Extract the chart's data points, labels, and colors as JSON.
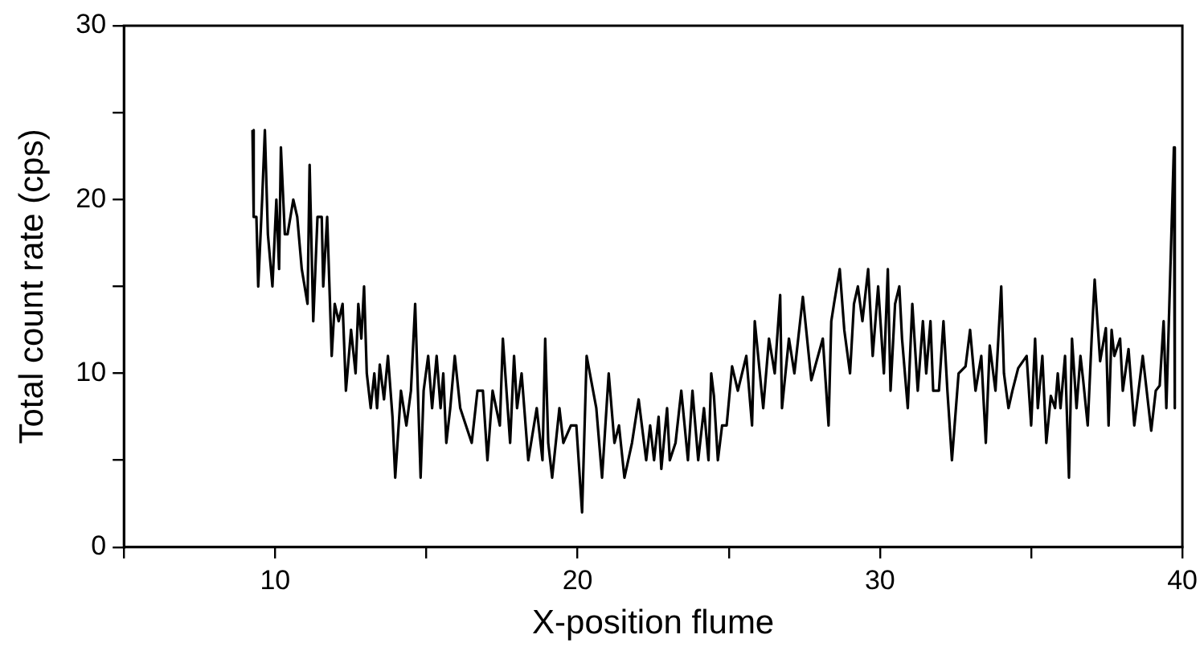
{
  "chart_data": {
    "type": "line",
    "xlabel": "X-position flume",
    "ylabel": "Total count rate (cps)",
    "xlim": [
      5,
      40
    ],
    "xticks": [
      {
        "value": 5,
        "label": null
      },
      10,
      {
        "value": 15,
        "label": null
      },
      20,
      {
        "value": 25,
        "label": null
      },
      30,
      {
        "value": 35,
        "label": null
      },
      40
    ],
    "ylim": [
      0,
      30
    ],
    "yticks": [
      0,
      {
        "value": 5,
        "label": null
      },
      10,
      {
        "value": 15,
        "label": null
      },
      20,
      {
        "value": 25,
        "label": null
      },
      30
    ],
    "grid": false,
    "legend": false,
    "marker": "none",
    "line_style": "solid",
    "series": [
      {
        "color": "#000000",
        "x": [
          9.25,
          9.29,
          9.38,
          9.44,
          9.57,
          9.66,
          9.76,
          9.91,
          10.04,
          10.13,
          10.19,
          10.32,
          10.41,
          10.6,
          10.73,
          10.88,
          11.07,
          11.14,
          11.26,
          11.4,
          11.54,
          11.59,
          11.72,
          11.87,
          11.97,
          12.1,
          12.23,
          12.34,
          12.51,
          12.66,
          12.75,
          12.85,
          12.94,
          13.03,
          13.16,
          13.28,
          13.37,
          13.46,
          13.6,
          13.73,
          13.88,
          13.97,
          14.16,
          14.34,
          14.49,
          14.63,
          14.72,
          14.81,
          14.91,
          15.06,
          15.19,
          15.34,
          15.47,
          15.56,
          15.66,
          15.79,
          15.94,
          16.12,
          16.31,
          16.5,
          16.69,
          16.87,
          17.02,
          17.19,
          17.43,
          17.53,
          17.77,
          17.9,
          18.0,
          18.15,
          18.37,
          18.65,
          18.84,
          18.93,
          19.03,
          19.16,
          19.4,
          19.53,
          19.78,
          19.96,
          20.15,
          20.3,
          20.62,
          20.81,
          21.03,
          21.22,
          21.37,
          21.55,
          21.8,
          22.02,
          22.27,
          22.4,
          22.53,
          22.68,
          22.77,
          22.96,
          23.05,
          23.24,
          23.43,
          23.65,
          23.8,
          23.99,
          24.18,
          24.33,
          24.42,
          24.51,
          24.64,
          24.78,
          24.93,
          25.11,
          25.3,
          25.58,
          25.77,
          25.86,
          26.14,
          26.33,
          26.52,
          26.7,
          26.76,
          26.99,
          27.17,
          27.45,
          27.73,
          28.11,
          28.3,
          28.39,
          28.48,
          28.67,
          28.82,
          29.01,
          29.14,
          29.27,
          29.42,
          29.61,
          29.76,
          29.94,
          30.13,
          30.26,
          30.35,
          30.5,
          30.64,
          30.73,
          30.92,
          31.07,
          31.25,
          31.42,
          31.53,
          31.67,
          31.76,
          31.95,
          32.1,
          32.23,
          32.38,
          32.6,
          32.83,
          32.98,
          33.16,
          33.35,
          33.5,
          33.63,
          33.82,
          34.01,
          34.1,
          34.25,
          34.38,
          34.57,
          34.85,
          35.0,
          35.13,
          35.22,
          35.37,
          35.5,
          35.65,
          35.79,
          35.88,
          35.97,
          36.12,
          36.25,
          36.35,
          36.5,
          36.63,
          36.72,
          36.87,
          37.0,
          37.1,
          37.28,
          37.47,
          37.56,
          37.66,
          37.75,
          37.94,
          38.03,
          38.22,
          38.41,
          38.69,
          38.82,
          38.97,
          39.12,
          39.25,
          39.38,
          39.47,
          39.72,
          39.75
        ],
        "values": [
          24,
          19,
          19,
          15,
          20,
          24,
          18,
          15,
          20,
          16,
          23,
          18,
          18,
          20,
          19,
          16,
          14,
          22,
          13,
          19,
          19,
          15,
          19,
          11,
          14,
          13,
          14,
          9,
          12.5,
          10,
          14,
          12,
          15,
          10,
          8,
          10,
          8,
          10.5,
          8.5,
          11,
          7.5,
          4,
          9,
          7,
          9,
          14,
          9,
          4,
          9,
          11,
          8,
          11,
          8,
          10,
          6,
          8,
          11,
          8,
          7,
          6,
          9,
          9,
          5,
          9,
          7,
          12,
          6,
          11,
          8,
          10,
          5,
          8,
          5,
          12,
          6,
          4,
          8,
          6,
          7,
          7,
          2,
          11,
          8,
          4,
          10,
          6,
          7,
          4,
          6,
          8.5,
          5,
          7,
          5,
          7.5,
          4.5,
          8,
          5,
          6,
          9,
          5,
          9,
          5,
          8,
          5,
          10,
          8.7,
          5,
          7,
          7,
          10.4,
          9,
          11,
          7,
          13,
          8,
          12,
          10,
          14.5,
          8,
          12,
          10,
          14.4,
          9.6,
          12,
          7,
          13,
          14,
          16,
          12.5,
          10,
          14,
          15,
          13,
          16,
          11,
          15,
          10,
          16,
          9,
          14,
          15,
          12,
          8,
          14,
          9,
          13,
          10,
          13,
          9,
          9,
          13,
          9,
          5,
          10,
          10.4,
          12.5,
          9,
          11,
          6,
          11.6,
          9,
          15,
          10,
          8,
          9,
          10.3,
          11,
          7,
          12,
          8,
          11,
          6,
          8.7,
          8,
          10,
          8,
          11,
          4,
          12,
          8,
          11,
          9.6,
          7,
          12,
          15.4,
          10.7,
          12.6,
          7,
          12.5,
          11,
          12,
          9,
          11.4,
          7,
          11,
          9,
          6.7,
          9,
          9.3,
          13,
          8,
          23,
          8
        ]
      }
    ]
  }
}
